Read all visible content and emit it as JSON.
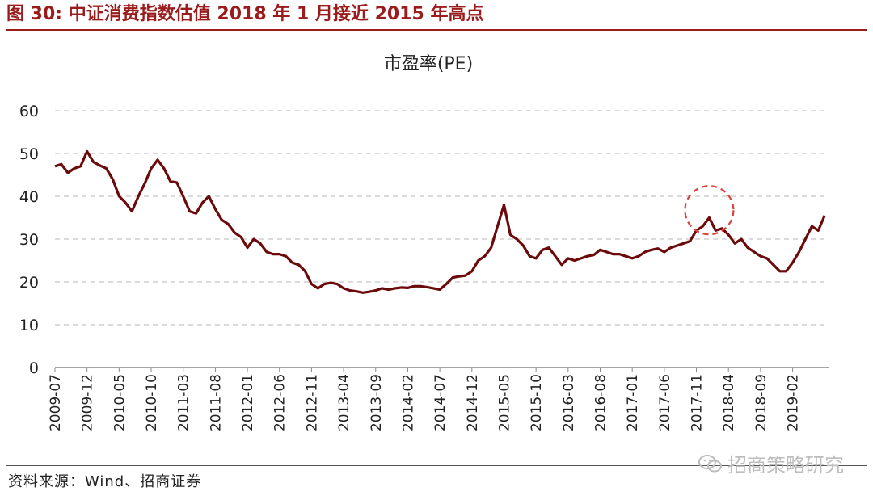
{
  "figure": {
    "title": "图 30: 中证消费指数估值 2018 年 1 月接近 2015 年高点",
    "source": "资料来源：Wind、招商证券",
    "watermark": "招商策略研究"
  },
  "colors": {
    "title": "#9b1c1c",
    "series": "#6b0a0a",
    "highlight": "#d9423a",
    "grid": "#cfcfcf"
  },
  "chart_data": {
    "type": "line",
    "title": "市盈率(PE)",
    "xlabel": "",
    "ylabel": "",
    "ylim": [
      0,
      60
    ],
    "yticks": [
      0,
      10,
      20,
      30,
      40,
      50,
      60
    ],
    "xticks": [
      "2009-07",
      "2009-12",
      "2010-05",
      "2010-10",
      "2011-03",
      "2011-08",
      "2012-01",
      "2012-06",
      "2012-11",
      "2013-04",
      "2013-09",
      "2014-02",
      "2014-07",
      "2014-12",
      "2015-05",
      "2015-10",
      "2016-03",
      "2016-08",
      "2017-01",
      "2017-06",
      "2017-11",
      "2018-04",
      "2018-09",
      "2019-02"
    ],
    "grid": "horizontal-dashed",
    "legend": "none",
    "annotation": {
      "type": "dashed-circle",
      "x": "2018-01",
      "y": 36
    },
    "series": [
      {
        "x": [
          "2009-07",
          "2009-08",
          "2009-09",
          "2009-10",
          "2009-11",
          "2009-12",
          "2010-01",
          "2010-02",
          "2010-03",
          "2010-04",
          "2010-05",
          "2010-06",
          "2010-07",
          "2010-08",
          "2010-09",
          "2010-10",
          "2010-11",
          "2010-12",
          "2011-01",
          "2011-02",
          "2011-03",
          "2011-04",
          "2011-05",
          "2011-06",
          "2011-07",
          "2011-08",
          "2011-09",
          "2011-10",
          "2011-11",
          "2011-12",
          "2012-01",
          "2012-02",
          "2012-03",
          "2012-04",
          "2012-05",
          "2012-06",
          "2012-07",
          "2012-08",
          "2012-09",
          "2012-10",
          "2012-11",
          "2012-12",
          "2013-01",
          "2013-02",
          "2013-03",
          "2013-04",
          "2013-05",
          "2013-06",
          "2013-07",
          "2013-08",
          "2013-09",
          "2013-10",
          "2013-11",
          "2013-12",
          "2014-01",
          "2014-02",
          "2014-03",
          "2014-04",
          "2014-05",
          "2014-06",
          "2014-07",
          "2014-08",
          "2014-09",
          "2014-10",
          "2014-11",
          "2014-12",
          "2015-01",
          "2015-02",
          "2015-03",
          "2015-04",
          "2015-05",
          "2015-06",
          "2015-07",
          "2015-08",
          "2015-09",
          "2015-10",
          "2015-11",
          "2015-12",
          "2016-01",
          "2016-02",
          "2016-03",
          "2016-04",
          "2016-05",
          "2016-06",
          "2016-07",
          "2016-08",
          "2016-09",
          "2016-10",
          "2016-11",
          "2016-12",
          "2017-01",
          "2017-02",
          "2017-03",
          "2017-04",
          "2017-05",
          "2017-06",
          "2017-07",
          "2017-08",
          "2017-09",
          "2017-10",
          "2017-11",
          "2017-12",
          "2018-01",
          "2018-02",
          "2018-03",
          "2018-04",
          "2018-05",
          "2018-06",
          "2018-07",
          "2018-08",
          "2018-09",
          "2018-10",
          "2018-11",
          "2018-12",
          "2019-01",
          "2019-02",
          "2019-03",
          "2019-04",
          "2019-05",
          "2019-06",
          "2019-07"
        ],
        "values": [
          47,
          47.5,
          45.5,
          46.5,
          47,
          50.5,
          48,
          47.2,
          46.5,
          44,
          40,
          38.5,
          36.5,
          40,
          43,
          46.5,
          48.5,
          46.5,
          43.5,
          43.2,
          40,
          36.5,
          36,
          38.5,
          40,
          37,
          34.5,
          33.5,
          31.5,
          30.5,
          28,
          30,
          29,
          27,
          26.5,
          26.5,
          26,
          24.5,
          24,
          22.5,
          19.5,
          18.5,
          19.5,
          19.8,
          19.5,
          18.5,
          18,
          17.8,
          17.5,
          17.7,
          18,
          18.5,
          18.2,
          18.5,
          18.7,
          18.6,
          19,
          19,
          18.8,
          18.5,
          18.2,
          19.5,
          21,
          21.3,
          21.5,
          22.5,
          25,
          26,
          28,
          33,
          38,
          31,
          30,
          28.5,
          26,
          25.5,
          27.5,
          28,
          26,
          24,
          25.5,
          25,
          25.5,
          26,
          26.3,
          27.5,
          27,
          26.5,
          26.5,
          26,
          25.5,
          26,
          27,
          27.5,
          27.8,
          27,
          28,
          28.5,
          29,
          29.5,
          32,
          33,
          35,
          32,
          32.5,
          31,
          29,
          30,
          28,
          27,
          26,
          25.5,
          24,
          22.5,
          22.5,
          24.5,
          27,
          30,
          33,
          32,
          35.5
        ]
      }
    ]
  }
}
